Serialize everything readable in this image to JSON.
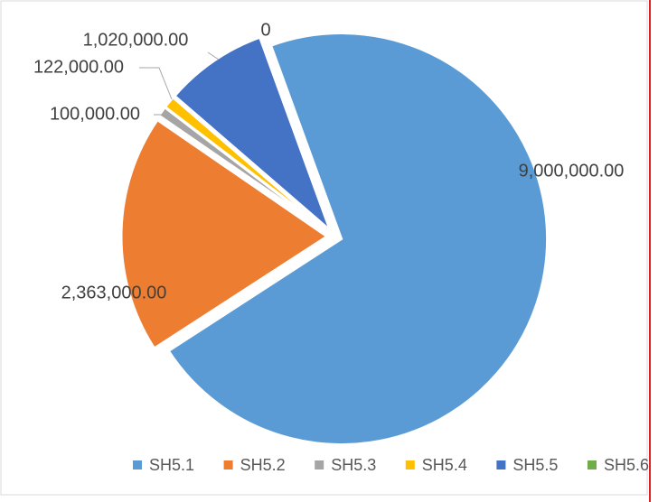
{
  "chart_data": {
    "type": "pie",
    "categories": [
      "SH5.1",
      "SH5.2",
      "SH5.3",
      "SH5.4",
      "SH5.5",
      "SH5.6"
    ],
    "values": [
      9000000,
      2363000,
      100000,
      122000,
      1020000,
      0
    ],
    "value_labels": [
      "9,000,000.00",
      "2,363,000.00",
      "100,000.00",
      "122,000.00",
      "1,020,000.00",
      "0"
    ],
    "colors": [
      "#5b9bd5",
      "#ed7d31",
      "#a5a5a5",
      "#ffc000",
      "#4472c4",
      "#70ad47"
    ],
    "legend": "bottom"
  }
}
